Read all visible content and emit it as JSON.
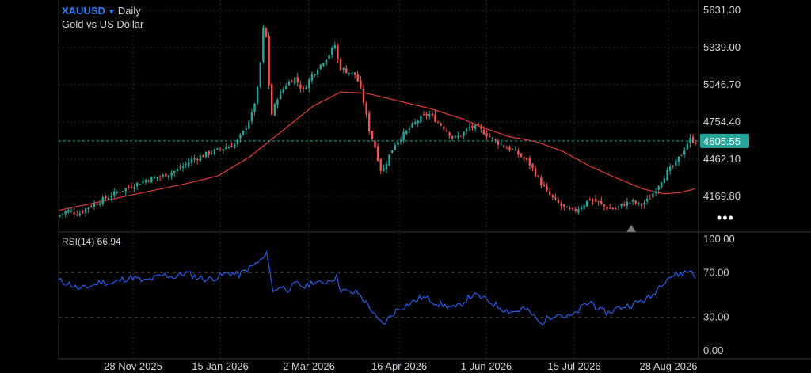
{
  "header": {
    "symbol": "XAUUSD",
    "timeframe": "Daily",
    "subtitle": "Gold vs US Dollar",
    "dropdown_icon": "caret-down-icon",
    "more_icon": "more-dots-icon"
  },
  "rsi_label": "RSI(14) 66.94",
  "colors": {
    "up": "#26a69a",
    "down": "#ef5350",
    "ma": "#e53935",
    "rsi": "#2962ff",
    "price_line": "#26a69a",
    "symbol": "#2f7bff"
  },
  "chart_data": [
    {
      "type": "candlestick",
      "title": "XAUUSD Daily",
      "x_tick_labels": [
        "28 Nov 2025",
        "15 Jan 2026",
        "2 Mar 2026",
        "16 Apr 2026",
        "1 Jun 2026",
        "15 Jul 2026",
        "28 Aug 2026"
      ],
      "y_tick_labels": [
        "5631.30",
        "5339.00",
        "5046.70",
        "4754.40",
        "4462.10",
        "4169.80"
      ],
      "ylim": [
        4000,
        5720
      ],
      "last_price": 4605.55,
      "last_price_label": "4605.55",
      "series": [
        {
          "name": "price",
          "path": [
            [
              0,
              4010
            ],
            [
              5,
              4060
            ],
            [
              10,
              4030
            ],
            [
              15,
              4090
            ],
            [
              20,
              4130
            ],
            [
              28,
              4200
            ],
            [
              35,
              4250
            ],
            [
              42,
              4300
            ],
            [
              50,
              4330
            ],
            [
              57,
              4380
            ],
            [
              64,
              4460
            ],
            [
              70,
              4500
            ],
            [
              77,
              4540
            ],
            [
              84,
              4580
            ],
            [
              88,
              4680
            ],
            [
              92,
              4820
            ],
            [
              95,
              5050
            ],
            [
              97,
              5450
            ],
            [
              98,
              5620
            ],
            [
              99,
              5250
            ],
            [
              101,
              4800
            ],
            [
              104,
              4950
            ],
            [
              108,
              5050
            ],
            [
              112,
              5100
            ],
            [
              116,
              5000
            ],
            [
              120,
              5120
            ],
            [
              124,
              5200
            ],
            [
              128,
              5280
            ],
            [
              131,
              5360
            ],
            [
              133,
              5180
            ],
            [
              137,
              5150
            ],
            [
              141,
              5120
            ],
            [
              144,
              4950
            ],
            [
              147,
              4700
            ],
            [
              150,
              4550
            ],
            [
              153,
              4350
            ],
            [
              156,
              4470
            ],
            [
              159,
              4580
            ],
            [
              163,
              4650
            ],
            [
              167,
              4720
            ],
            [
              171,
              4780
            ],
            [
              175,
              4820
            ],
            [
              179,
              4760
            ],
            [
              183,
              4700
            ],
            [
              187,
              4620
            ],
            [
              191,
              4660
            ],
            [
              195,
              4720
            ],
            [
              199,
              4700
            ],
            [
              203,
              4650
            ],
            [
              207,
              4600
            ],
            [
              211,
              4560
            ],
            [
              215,
              4530
            ],
            [
              219,
              4480
            ],
            [
              223,
              4420
            ],
            [
              227,
              4300
            ],
            [
              231,
              4200
            ],
            [
              235,
              4130
            ],
            [
              239,
              4080
            ],
            [
              243,
              4050
            ],
            [
              247,
              4090
            ],
            [
              251,
              4150
            ],
            [
              255,
              4120
            ],
            [
              259,
              4080
            ],
            [
              263,
              4070
            ],
            [
              267,
              4110
            ],
            [
              271,
              4130
            ],
            [
              275,
              4100
            ],
            [
              279,
              4150
            ],
            [
              283,
              4250
            ],
            [
              287,
              4350
            ],
            [
              291,
              4420
            ],
            [
              295,
              4520
            ],
            [
              298,
              4620
            ],
            [
              300,
              4605
            ]
          ]
        },
        {
          "name": "MA",
          "path": [
            [
              0,
              4060
            ],
            [
              20,
              4130
            ],
            [
              40,
              4200
            ],
            [
              60,
              4270
            ],
            [
              75,
              4330
            ],
            [
              90,
              4480
            ],
            [
              105,
              4680
            ],
            [
              120,
              4880
            ],
            [
              133,
              4990
            ],
            [
              145,
              4980
            ],
            [
              160,
              4920
            ],
            [
              175,
              4860
            ],
            [
              190,
              4780
            ],
            [
              200,
              4710
            ],
            [
              212,
              4640
            ],
            [
              225,
              4600
            ],
            [
              238,
              4520
            ],
            [
              250,
              4410
            ],
            [
              262,
              4320
            ],
            [
              275,
              4230
            ],
            [
              285,
              4190
            ],
            [
              293,
              4200
            ],
            [
              300,
              4230
            ]
          ]
        }
      ]
    },
    {
      "type": "line",
      "title": "RSI(14)",
      "last_value": 66.94,
      "y_tick_labels": [
        "100.00",
        "70.00",
        "30.00",
        "0.00"
      ],
      "ylim": [
        0,
        100
      ],
      "reference_levels": [
        70,
        30
      ],
      "series": [
        {
          "name": "RSI",
          "path": [
            [
              0,
              63
            ],
            [
              5,
              60
            ],
            [
              10,
              55
            ],
            [
              15,
              58
            ],
            [
              20,
              62
            ],
            [
              25,
              60
            ],
            [
              30,
              64
            ],
            [
              35,
              66
            ],
            [
              40,
              62
            ],
            [
              45,
              65
            ],
            [
              50,
              68
            ],
            [
              55,
              66
            ],
            [
              60,
              70
            ],
            [
              65,
              66
            ],
            [
              70,
              64
            ],
            [
              75,
              66
            ],
            [
              80,
              70
            ],
            [
              85,
              68
            ],
            [
              90,
              74
            ],
            [
              93,
              78
            ],
            [
              96,
              82
            ],
            [
              98,
              86
            ],
            [
              99,
              80
            ],
            [
              101,
              52
            ],
            [
              104,
              58
            ],
            [
              108,
              55
            ],
            [
              112,
              60
            ],
            [
              116,
              57
            ],
            [
              120,
              62
            ],
            [
              124,
              60
            ],
            [
              128,
              64
            ],
            [
              131,
              66
            ],
            [
              133,
              55
            ],
            [
              137,
              52
            ],
            [
              141,
              52
            ],
            [
              144,
              45
            ],
            [
              147,
              38
            ],
            [
              150,
              28
            ],
            [
              153,
              24
            ],
            [
              156,
              30
            ],
            [
              159,
              36
            ],
            [
              163,
              40
            ],
            [
              167,
              44
            ],
            [
              171,
              48
            ],
            [
              175,
              46
            ],
            [
              179,
              42
            ],
            [
              183,
              40
            ],
            [
              187,
              38
            ],
            [
              191,
              44
            ],
            [
              195,
              50
            ],
            [
              199,
              48
            ],
            [
              203,
              44
            ],
            [
              207,
              40
            ],
            [
              211,
              36
            ],
            [
              215,
              35
            ],
            [
              219,
              38
            ],
            [
              223,
              33
            ],
            [
              227,
              24
            ],
            [
              231,
              30
            ],
            [
              235,
              34
            ],
            [
              239,
              30
            ],
            [
              243,
              32
            ],
            [
              247,
              40
            ],
            [
              251,
              44
            ],
            [
              255,
              36
            ],
            [
              259,
              34
            ],
            [
              263,
              38
            ],
            [
              267,
              40
            ],
            [
              271,
              42
            ],
            [
              275,
              45
            ],
            [
              279,
              48
            ],
            [
              283,
              58
            ],
            [
              287,
              66
            ],
            [
              291,
              68
            ],
            [
              295,
              70
            ],
            [
              298,
              72
            ],
            [
              300,
              67
            ]
          ]
        }
      ]
    }
  ]
}
